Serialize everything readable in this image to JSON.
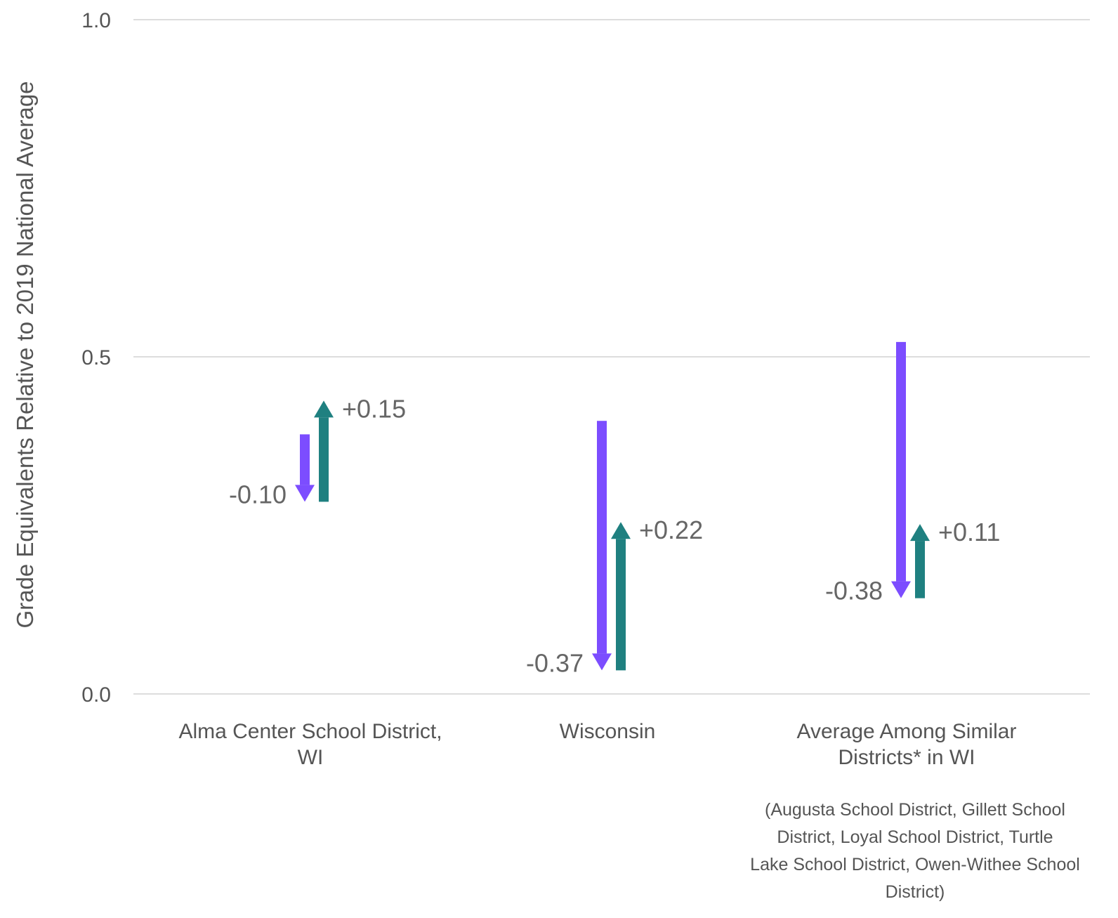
{
  "chart_data": {
    "type": "arrow-range",
    "ylabel": "Grade Equivalents Relative to 2019 National Average",
    "ylim": [
      0.0,
      1.0
    ],
    "yticks": [
      "0.0",
      "0.5",
      "1.0"
    ],
    "grid": true,
    "colors": {
      "decline": "#7c4dff",
      "recovery": "#1f8080",
      "grid": "#dddddd",
      "text": "#555555"
    },
    "categories": [
      {
        "label_lines": [
          "Alma Center School District,",
          "WI"
        ],
        "note_lines": [],
        "decline": {
          "from": 0.385,
          "to": 0.285,
          "label": "-0.10"
        },
        "recovery": {
          "from": 0.285,
          "to": 0.435,
          "label": "+0.15"
        }
      },
      {
        "label_lines": [
          "Wisconsin"
        ],
        "note_lines": [],
        "decline": {
          "from": 0.405,
          "to": 0.035,
          "label": "-0.37"
        },
        "recovery": {
          "from": 0.035,
          "to": 0.255,
          "label": "+0.22"
        }
      },
      {
        "label_lines": [
          "Average Among Similar",
          "Districts* in WI"
        ],
        "note_lines": [
          "(Augusta School District, Gillett School",
          "District, Loyal School District, Turtle",
          "Lake School District, Owen-Withee School",
          "District)"
        ],
        "decline": {
          "from": 0.522,
          "to": 0.142,
          "label": "-0.38"
        },
        "recovery": {
          "from": 0.142,
          "to": 0.252,
          "label": "+0.11"
        }
      }
    ]
  }
}
